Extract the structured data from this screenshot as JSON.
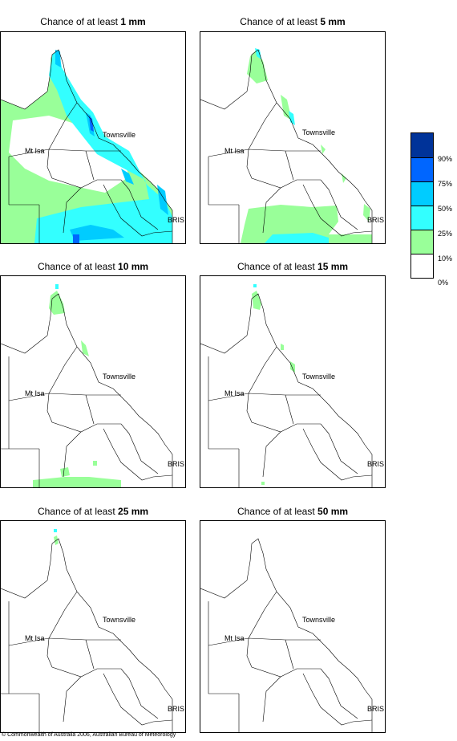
{
  "panels": [
    {
      "prefix": "Chance of at least ",
      "amount": "1 mm",
      "level": "1mm"
    },
    {
      "prefix": "Chance of at least ",
      "amount": "5 mm",
      "level": "5mm"
    },
    {
      "prefix": "Chance of at least ",
      "amount": "10 mm",
      "level": "10mm"
    },
    {
      "prefix": "Chance of at least ",
      "amount": "15 mm",
      "level": "15mm"
    },
    {
      "prefix": "Chance of at least ",
      "amount": "25 mm",
      "level": "25mm"
    },
    {
      "prefix": "Chance of at least ",
      "amount": "50 mm",
      "level": "50mm"
    }
  ],
  "places": {
    "townsville": "Townsville",
    "mt_isa": "Mt Isa",
    "bris": "BRIS"
  },
  "legend": {
    "labels": [
      "90%",
      "75%",
      "50%",
      "25%",
      "10%",
      "0%"
    ],
    "colors": [
      "#003399",
      "#0066ff",
      "#00ccff",
      "#33ffff",
      "#99ff99",
      "#ffffff"
    ]
  },
  "colors": {
    "green": "#99ff99",
    "cyan": "#33ffff",
    "sky": "#00ccff",
    "blue": "#0066ff",
    "navy": "#003399"
  },
  "copyright": "© Commonwealth of Australia 2006, Australian Bureau of Meteorology"
}
